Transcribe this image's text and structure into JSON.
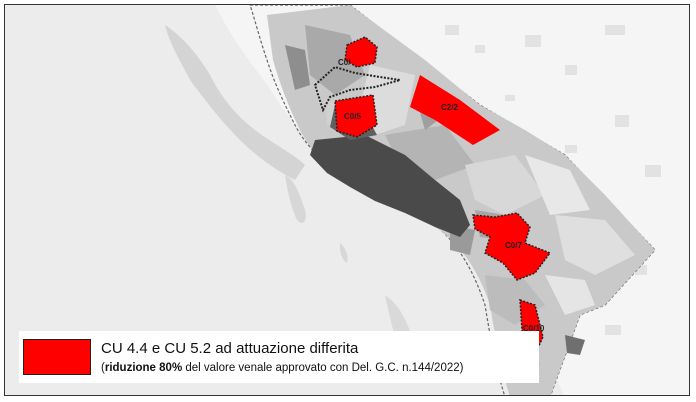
{
  "zones": [
    {
      "id": "c0-upper",
      "label": "C0/"
    },
    {
      "id": "c0-5",
      "label": "C0/5"
    },
    {
      "id": "c2-2",
      "label": "C2/2"
    },
    {
      "id": "c0-7",
      "label": "C0/7"
    },
    {
      "id": "c0-10",
      "label": "C0/10"
    }
  ],
  "legend": {
    "title": "CU 4.4 e CU 5.2 ad attuazione differita",
    "note_open": "(",
    "note_bold": "riduzione 80%",
    "note_rest": " del valore venale approvato con Del. G.C. n.144/2022)",
    "swatch_color": "#ff0000"
  },
  "colors": {
    "sea": "#eeeeee",
    "land": "#f4f4f4",
    "urban_dark": "#4a4a4a",
    "highlight": "#ff0000",
    "boundary": "#555555"
  }
}
